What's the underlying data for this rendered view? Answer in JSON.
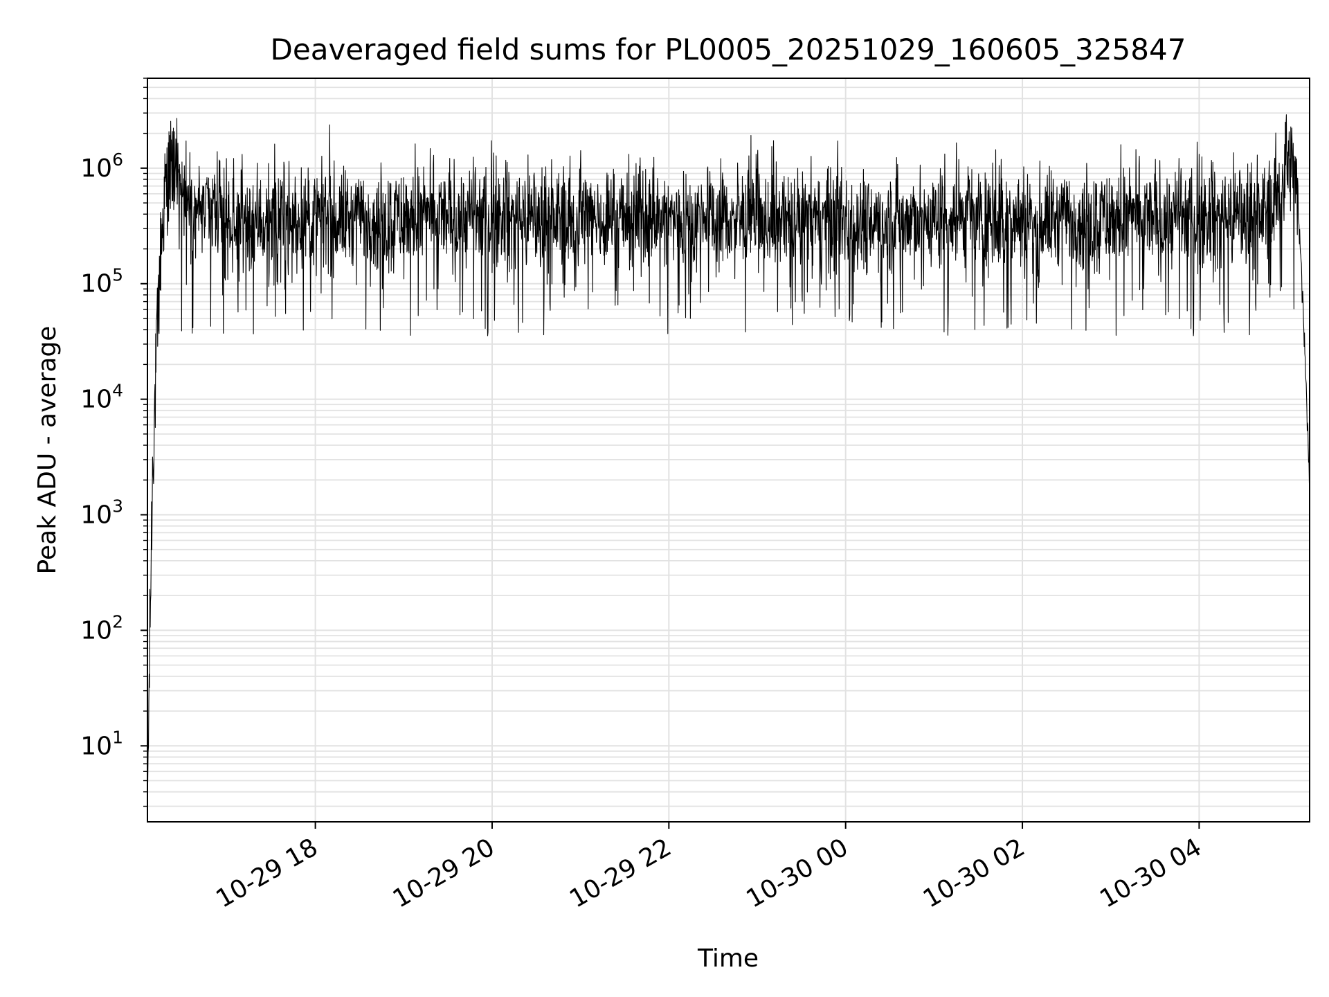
{
  "chart_data": {
    "type": "line",
    "title": "Deaveraged field sums for PL0005_20251029_160605_325847",
    "xlabel": "Time",
    "ylabel": "Peak ADU - average",
    "yscale": "log",
    "ylim": [
      2.2,
      6000000
    ],
    "xlim_hours": [
      16.1,
      29.25
    ],
    "grid": true,
    "x_ticks": [
      {
        "hour": 18,
        "label": "10-29 18"
      },
      {
        "hour": 20,
        "label": "10-29 20"
      },
      {
        "hour": 22,
        "label": "10-29 22"
      },
      {
        "hour": 24,
        "label": "10-30 00"
      },
      {
        "hour": 26,
        "label": "10-30 02"
      },
      {
        "hour": 28,
        "label": "10-30 04"
      }
    ],
    "y_ticks": [
      {
        "value": 10,
        "base": "10",
        "exp": "1"
      },
      {
        "value": 100,
        "base": "10",
        "exp": "2"
      },
      {
        "value": 1000,
        "base": "10",
        "exp": "3"
      },
      {
        "value": 10000,
        "base": "10",
        "exp": "4"
      },
      {
        "value": 100000,
        "base": "10",
        "exp": "5"
      },
      {
        "value": 1000000,
        "base": "10",
        "exp": "6"
      }
    ],
    "series": [
      {
        "name": "deaveraged field sum",
        "color": "#000000",
        "baseline_points": [
          {
            "hour": 16.1,
            "value": 3
          },
          {
            "hour": 16.13,
            "value": 120
          },
          {
            "hour": 16.16,
            "value": 3000
          },
          {
            "hour": 16.2,
            "value": 20000
          },
          {
            "hour": 16.25,
            "value": 200000
          },
          {
            "hour": 16.3,
            "value": 600000
          },
          {
            "hour": 16.35,
            "value": 900000
          },
          {
            "hour": 16.45,
            "value": 800000
          },
          {
            "hour": 16.6,
            "value": 500000
          },
          {
            "hour": 17.0,
            "value": 350000
          },
          {
            "hour": 20.0,
            "value": 380000
          },
          {
            "hour": 24.0,
            "value": 350000
          },
          {
            "hour": 28.0,
            "value": 370000
          },
          {
            "hour": 28.8,
            "value": 420000
          },
          {
            "hour": 28.95,
            "value": 900000
          },
          {
            "hour": 29.05,
            "value": 1100000
          },
          {
            "hour": 29.12,
            "value": 500000
          },
          {
            "hour": 29.18,
            "value": 50000
          },
          {
            "hour": 29.25,
            "value": 2000
          }
        ],
        "noise_decades": 0.28,
        "dip_floor": 35000,
        "peak_max": 2900000,
        "samples": 3400
      }
    ]
  }
}
